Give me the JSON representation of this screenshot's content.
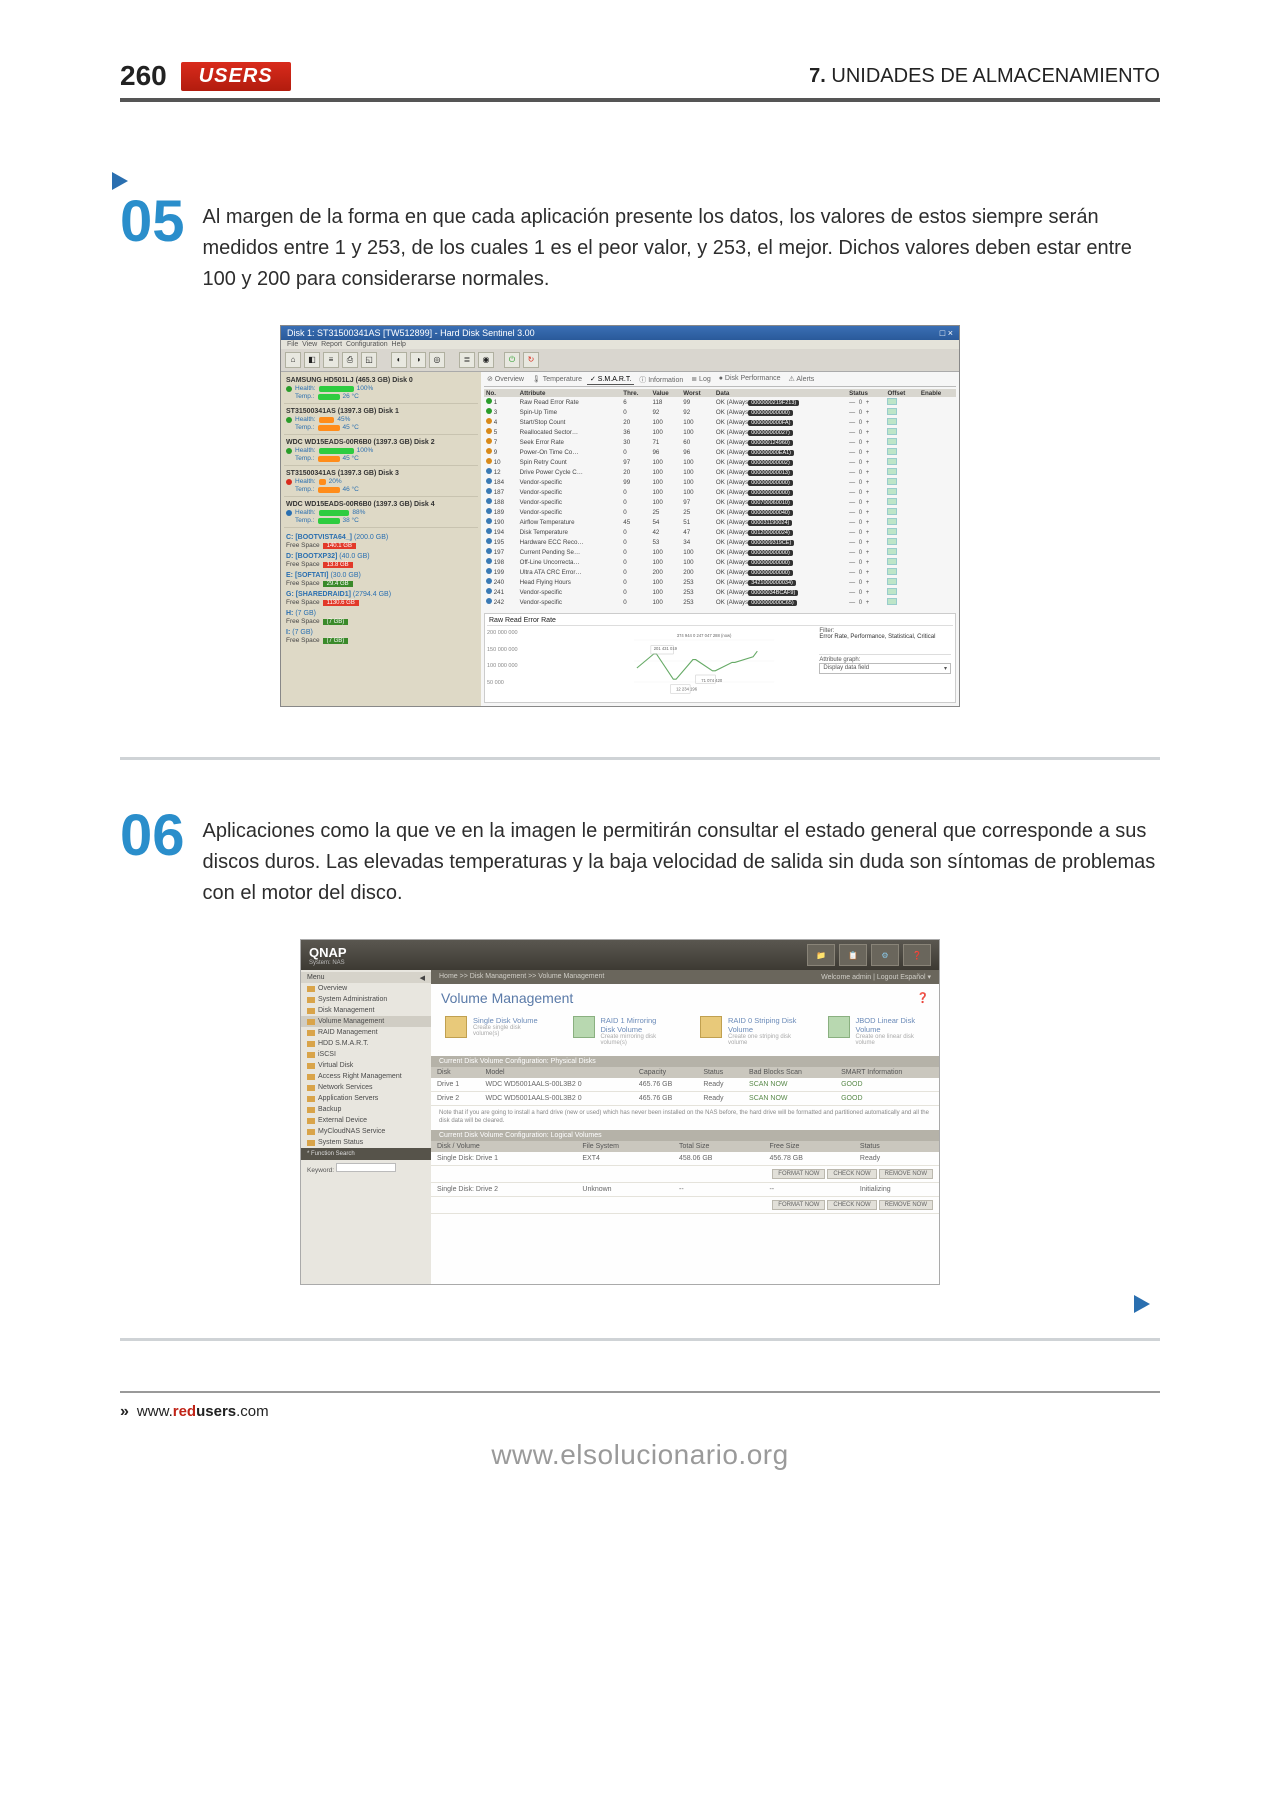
{
  "page_number": "260",
  "brand_badge": "USERS",
  "chapter_num": "7.",
  "chapter_title": "UNIDADES DE ALMACENAMIENTO",
  "step05": {
    "num": "05",
    "text": "Al margen de la forma en que cada aplicación presente los datos, los valores de estos siempre serán medidos entre 1 y 253, de los cuales 1 es el peor valor, y 253, el mejor. Dichos valores deben estar entre 100 y 200 para considerarse normales."
  },
  "step06": {
    "num": "06",
    "text": "Aplicaciones como la que ve en la imagen le permitirán consultar el estado general que corresponde a sus discos duros. Las elevadas temperaturas y la baja velocidad de salida sin duda son síntomas de problemas con el motor del disco."
  },
  "hds": {
    "title": "Disk 1: ST31500341AS [TW512899] - Hard Disk Sentinel 3.00",
    "title_right": "□ ×",
    "tabs": [
      "Overview",
      "Temperature",
      "S.M.A.R.T.",
      "Information",
      "Log",
      "Disk Performance",
      "Alerts"
    ],
    "active_tab_index": 2,
    "disks": [
      {
        "name": "SAMSUNG HD501LJ (465.3 GB) Disk 0",
        "health_pct": 100,
        "health_color": "green",
        "temp": "26 °C",
        "temp_color": "green"
      },
      {
        "name": "ST31500341AS (1397.3 GB) Disk 1",
        "health_pct": 45,
        "health_color": "orange",
        "temp": "45 °C",
        "temp_color": "orange",
        "warn": "green"
      },
      {
        "name": "WDC WD15EADS-00R6B0 (1397.3 GB) Disk 2",
        "health_pct": 100,
        "health_color": "green",
        "temp": "45 °C",
        "temp_color": "orange"
      },
      {
        "name": "ST31500341AS (1397.3 GB) Disk 3",
        "health_pct": 20,
        "health_color": "orange",
        "temp": "46 °C",
        "temp_color": "orange",
        "warn": "red"
      },
      {
        "name": "WDC WD15EADS-00R6B0 (1397.3 GB) Disk 4",
        "health_pct": 88,
        "health_color": "green",
        "temp": "38 °C",
        "temp_color": "green",
        "warn": "blue"
      }
    ],
    "vols": [
      {
        "l": "C: [BOOTVISTA64_]",
        "r": "(200.0 GB)",
        "free": "140.1 GB",
        "c": "#e23a2a"
      },
      {
        "l": "D: [BOOTXP32]",
        "r": "(40.0 GB)",
        "free": "13.8 GB",
        "c": "#e23a2a"
      },
      {
        "l": "E: [SOFTATI]",
        "r": "(30.0 GB)",
        "free": "29.4 GB",
        "c": "#3a8a2a"
      },
      {
        "l": "G: [SHAREDRAID1]",
        "r": "(2794.4 GB)",
        "free": "1130.6 GB",
        "c": "#e23a2a"
      },
      {
        "l": "H:",
        "r": "(7 GB)",
        "free": "(7 GB)",
        "c": "#3a8a2a"
      },
      {
        "l": "I:",
        "r": "(7 GB)",
        "free": "(7 GB)",
        "c": "#3a8a2a"
      }
    ],
    "table_head": [
      "No.",
      "Attribute",
      "Thre.",
      "Value",
      "Worst",
      "Data",
      "Status",
      "Offset",
      "Enable"
    ],
    "table_rows": [
      [
        "1",
        "Raw Read Error Rate",
        "6",
        "118",
        "99",
        "OK (Always…0000000219F213)",
        "— 0 +"
      ],
      [
        "3",
        "Spin-Up Time",
        "0",
        "92",
        "92",
        "OK (Always…000000000000)",
        "— 0 +"
      ],
      [
        "4",
        "Start/Stop Count",
        "20",
        "100",
        "100",
        "OK (Always…0000000000FA)",
        "— 0 +"
      ],
      [
        "5",
        "Reallocated Sector…",
        "36",
        "100",
        "100",
        "OK (Always…000000000027)",
        "— 0 +"
      ],
      [
        "7",
        "Seek Error Rate",
        "30",
        "71",
        "60",
        "OK (Always…000000124960)",
        "— 0 +"
      ],
      [
        "9",
        "Power-On Time Co…",
        "0",
        "96",
        "96",
        "OK (Always…000000000EA1)",
        "— 0 +"
      ],
      [
        "10",
        "Spin Retry Count",
        "97",
        "100",
        "100",
        "OK (Always…000000000002)",
        "— 0 +"
      ],
      [
        "12",
        "Drive Power Cycle C…",
        "20",
        "100",
        "100",
        "OK (Always…000000000013)",
        "— 0 +"
      ],
      [
        "184",
        "Vendor-specific",
        "99",
        "100",
        "100",
        "OK (Always…000000000000)",
        "— 0 +"
      ],
      [
        "187",
        "Vendor-specific",
        "0",
        "100",
        "100",
        "OK (Always…000000000000)",
        "— 0 +"
      ],
      [
        "188",
        "Vendor-specific",
        "0",
        "100",
        "97",
        "OK (Always…000700060010)",
        "— 0 +"
      ],
      [
        "189",
        "Vendor-specific",
        "0",
        "25",
        "25",
        "OK (Always…000000000040)",
        "— 0 +"
      ],
      [
        "190",
        "Airflow Temperature",
        "45",
        "54",
        "51",
        "OK (Always…000031190024)",
        "— 0 +"
      ],
      [
        "194",
        "Disk Temperature",
        "0",
        "42",
        "47",
        "OK (Always…001200000024)",
        "— 0 +"
      ],
      [
        "195",
        "Hardware ECC Reco…",
        "0",
        "53",
        "34",
        "OK (Always…0000009319CE)",
        "— 0 +"
      ],
      [
        "197",
        "Current Pending Se…",
        "0",
        "100",
        "100",
        "OK (Always…000000000000)",
        "— 0 +"
      ],
      [
        "198",
        "Off-Line Uncorrecta…",
        "0",
        "100",
        "100",
        "OK (Always…000000000000)",
        "— 0 +"
      ],
      [
        "199",
        "Ultra ATA CRC Error…",
        "0",
        "200",
        "200",
        "OK (Always…000000000000)",
        "— 0 +"
      ],
      [
        "240",
        "Head Flying Hours",
        "0",
        "100",
        "253",
        "OK (Always…3421000000034)",
        "— 0 +"
      ],
      [
        "241",
        "Vendor-specific",
        "0",
        "100",
        "253",
        "OK (Always…00000034BCAF9)",
        "— 0 +"
      ],
      [
        "242",
        "Vendor-specific",
        "0",
        "100",
        "253",
        "OK (Always…0000000000C65)",
        "— 0 +"
      ]
    ],
    "graph": {
      "title": "Raw Read Error Rate",
      "y_labels": [
        "200 000 000",
        "150 000 000",
        "100 000 000",
        "50 000"
      ],
      "points": [
        [
          0,
          25
        ],
        [
          15,
          38
        ],
        [
          30,
          15
        ],
        [
          45,
          32
        ],
        [
          60,
          20
        ],
        [
          75,
          28
        ],
        [
          90,
          34
        ]
      ],
      "annot1": "201 431 019",
      "annot2": "374 944 0  247 047 288 (now)",
      "annot3": "71 074 420",
      "annot4": "12 234 196",
      "filter_l": "Filter:",
      "filter_v": "Error Rate, Performance, Statistical, Critical",
      "attr_l": "Attribute graph:",
      "attr_v": "Display data field"
    }
  },
  "qnap": {
    "logo": "QNAP",
    "crumb_l": "Home >> Disk Management >> Volume Management",
    "crumb_r": "Welcome admin | Logout    Español ▾",
    "title": "Volume Management",
    "side": [
      "Overview",
      "System Administration",
      "Disk Management",
      "Volume Management",
      "RAID Management",
      "HDD S.M.A.R.T.",
      "iSCSI",
      "Virtual Disk",
      "Access Right Management",
      "Network Services",
      "Application Servers",
      "Backup",
      "External Device",
      "MyCloudNAS Service",
      "System Status"
    ],
    "side_footer_k": "* Function Search",
    "side_footer_l": "Keyword:",
    "opts": [
      {
        "t": "Single Disk Volume",
        "s": "Create single disk volume(s)"
      },
      {
        "t": "RAID 1 Mirroring Disk Volume",
        "s": "Create mirroring disk volume(s)"
      },
      {
        "t": "RAID 0 Striping Disk Volume",
        "s": "Create one striping disk volume"
      },
      {
        "t": "JBOD Linear Disk Volume",
        "s": "Create one linear disk volume"
      }
    ],
    "tbl1": {
      "section": "Current Disk Volume Configuration: Physical Disks",
      "head": [
        "Disk",
        "Model",
        "Capacity",
        "Status",
        "Bad Blocks Scan",
        "SMART Information"
      ],
      "rows": [
        [
          "Drive 1",
          "WDC WD5001AALS-00L3B2 0",
          "465.76 GB",
          "Ready",
          "SCAN NOW",
          "GOOD"
        ],
        [
          "Drive 2",
          "WDC WD5001AALS-00L3B2 0",
          "465.76 GB",
          "Ready",
          "SCAN NOW",
          "GOOD"
        ]
      ]
    },
    "note": "Note that if you are going to install a hard drive (new or used) which has never been installed on the NAS before, the hard drive will be formatted and partitioned automatically and all the disk data will be cleared.",
    "tbl2": {
      "section": "Current Disk Volume Configuration: Logical Volumes",
      "head": [
        "Disk / Volume",
        "File System",
        "Total Size",
        "Free Size",
        "Status"
      ],
      "rows": [
        [
          "Single Disk: Drive 1",
          "EXT4",
          "458.06 GB",
          "456.78 GB",
          "Ready"
        ],
        [
          "Single Disk: Drive 2",
          "Unknown",
          "--",
          "--",
          "Initializing"
        ]
      ],
      "btns": [
        "FORMAT NOW",
        "CHECK NOW",
        "REMOVE NOW"
      ]
    }
  },
  "footer": {
    "chevrons": "»",
    "url_pre": "www.",
    "url_mid": "red",
    "url_post": "users",
    "url_end": ".com"
  },
  "watermark": "www.elsolucionario.org",
  "colors": {
    "accent_step": "#2a8ecb",
    "triangle": "#2a6fb0",
    "bar_green": "#2ecc40",
    "bar_orange": "#ff8c1a",
    "users_bg": "#d92b1c"
  }
}
